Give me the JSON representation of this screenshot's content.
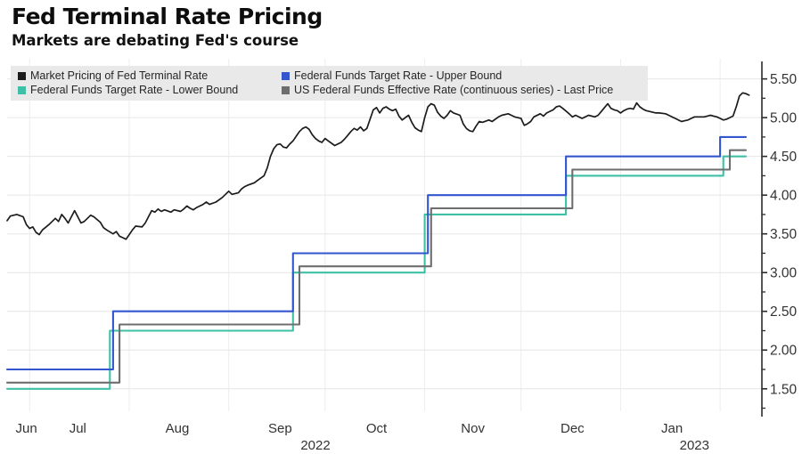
{
  "header": {
    "title": "Fed Terminal Rate Pricing",
    "subtitle": "Markets are debating Fed's course"
  },
  "legend": {
    "items": [
      {
        "label": "Market Pricing of Fed Terminal Rate",
        "color": "#1c1c1c"
      },
      {
        "label": "Federal Funds Target Rate - Upper Bound",
        "color": "#3356cf"
      },
      {
        "label": "Federal Funds Target Rate - Lower Bound",
        "color": "#3ec0a6"
      },
      {
        "label": "US Federal Funds Effective Rate (continuous series) - Last Price",
        "color": "#6e6e6e"
      }
    ]
  },
  "colors": {
    "background": "#ffffff",
    "grid_horizontal": "#e6e6e6",
    "grid_vertical": "#ededed",
    "axis": "#2b2b2b",
    "tick_label": "#333333",
    "legend_background": "#e9e9e9"
  },
  "chart_data": {
    "type": "line",
    "title": "Fed Terminal Rate Pricing",
    "subtitle": "Markets are debating Fed's course",
    "x_unit": "days since chart start (late June 2022, ~Jun 24 2022); chart ends early Feb 2023",
    "xlim": [
      0,
      235
    ],
    "ylim": [
      1.21,
      5.76
    ],
    "grid": true,
    "legend_position": "top-left",
    "y_axis_side": "right",
    "y_ticks_major": [
      1.5,
      2.0,
      2.5,
      3.0,
      3.5,
      4.0,
      4.5,
      5.0,
      5.5
    ],
    "y_ticks_minor": [
      1.25,
      1.75,
      2.25,
      2.75,
      3.25,
      3.75,
      4.25,
      4.75,
      5.25
    ],
    "y_tick_decimals": 2,
    "x_month_gridline_days": [
      7,
      38,
      69,
      99,
      130,
      160,
      191,
      222
    ],
    "x_month_labels": [
      {
        "label": "Jun",
        "day": 6
      },
      {
        "label": "Jul",
        "day": 22
      },
      {
        "label": "Aug",
        "day": 53
      },
      {
        "label": "Sep",
        "day": 85
      },
      {
        "label": "Oct",
        "day": 115
      },
      {
        "label": "Nov",
        "day": 145
      },
      {
        "label": "Dec",
        "day": 176
      },
      {
        "label": "Jan",
        "day": 207
      }
    ],
    "x_year_labels": [
      {
        "label": "2022",
        "day": 96
      },
      {
        "label": "2023",
        "day": 214
      }
    ],
    "series": [
      {
        "name": "Federal Funds Target Rate - Lower Bound",
        "color": "#3ec0a6",
        "width": 2.1,
        "points": [
          [
            0,
            1.5
          ],
          [
            32,
            1.5
          ],
          [
            32,
            2.25
          ],
          [
            89,
            2.25
          ],
          [
            89,
            3.0
          ],
          [
            130,
            3.0
          ],
          [
            130,
            3.75
          ],
          [
            174,
            3.75
          ],
          [
            174,
            4.25
          ],
          [
            223,
            4.25
          ],
          [
            223,
            4.5
          ],
          [
            230,
            4.5
          ]
        ]
      },
      {
        "name": "US Federal Funds Effective Rate (continuous series) - Last Price",
        "color": "#6e6e6e",
        "width": 2.1,
        "points": [
          [
            0,
            1.58
          ],
          [
            35,
            1.58
          ],
          [
            35,
            2.33
          ],
          [
            91,
            2.33
          ],
          [
            91,
            3.08
          ],
          [
            132,
            3.08
          ],
          [
            132,
            3.83
          ],
          [
            176,
            3.83
          ],
          [
            176,
            4.33
          ],
          [
            225,
            4.33
          ],
          [
            225,
            4.58
          ],
          [
            230,
            4.58
          ]
        ]
      },
      {
        "name": "Federal Funds Target Rate - Upper Bound",
        "color": "#3356cf",
        "width": 2.1,
        "points": [
          [
            0,
            1.75
          ],
          [
            33,
            1.75
          ],
          [
            33,
            2.5
          ],
          [
            89,
            2.5
          ],
          [
            89,
            3.25
          ],
          [
            131,
            3.25
          ],
          [
            131,
            4.0
          ],
          [
            174,
            4.0
          ],
          [
            174,
            4.5
          ],
          [
            222,
            4.5
          ],
          [
            222,
            4.75
          ],
          [
            230,
            4.75
          ]
        ]
      },
      {
        "name": "Market Pricing of Fed Terminal Rate",
        "color": "#1c1c1c",
        "width": 1.7,
        "points": [
          [
            0,
            3.67
          ],
          [
            1,
            3.73
          ],
          [
            3,
            3.75
          ],
          [
            5,
            3.72
          ],
          [
            6,
            3.62
          ],
          [
            7,
            3.57
          ],
          [
            8,
            3.59
          ],
          [
            9,
            3.52
          ],
          [
            10,
            3.49
          ],
          [
            11,
            3.55
          ],
          [
            13,
            3.62
          ],
          [
            15,
            3.7
          ],
          [
            16,
            3.66
          ],
          [
            17,
            3.75
          ],
          [
            18,
            3.7
          ],
          [
            19,
            3.64
          ],
          [
            20,
            3.72
          ],
          [
            21,
            3.8
          ],
          [
            22,
            3.72
          ],
          [
            23,
            3.64
          ],
          [
            24,
            3.66
          ],
          [
            25,
            3.7
          ],
          [
            26,
            3.74
          ],
          [
            27,
            3.72
          ],
          [
            29,
            3.65
          ],
          [
            30,
            3.58
          ],
          [
            31,
            3.55
          ],
          [
            33,
            3.5
          ],
          [
            34,
            3.53
          ],
          [
            35,
            3.47
          ],
          [
            36,
            3.45
          ],
          [
            37,
            3.43
          ],
          [
            38,
            3.49
          ],
          [
            39,
            3.55
          ],
          [
            40,
            3.6
          ],
          [
            42,
            3.59
          ],
          [
            43,
            3.64
          ],
          [
            44,
            3.72
          ],
          [
            45,
            3.8
          ],
          [
            46,
            3.78
          ],
          [
            47,
            3.82
          ],
          [
            48,
            3.79
          ],
          [
            49,
            3.81
          ],
          [
            51,
            3.78
          ],
          [
            52,
            3.81
          ],
          [
            54,
            3.79
          ],
          [
            55,
            3.82
          ],
          [
            56,
            3.86
          ],
          [
            57,
            3.83
          ],
          [
            58,
            3.81
          ],
          [
            59,
            3.84
          ],
          [
            61,
            3.88
          ],
          [
            62,
            3.91
          ],
          [
            63,
            3.88
          ],
          [
            65,
            3.91
          ],
          [
            66,
            3.94
          ],
          [
            67,
            3.97
          ],
          [
            68,
            4.01
          ],
          [
            69,
            4.05
          ],
          [
            70,
            4.01
          ],
          [
            72,
            4.03
          ],
          [
            73,
            4.08
          ],
          [
            74,
            4.11
          ],
          [
            75,
            4.13
          ],
          [
            77,
            4.16
          ],
          [
            78,
            4.19
          ],
          [
            80,
            4.25
          ],
          [
            81,
            4.35
          ],
          [
            82,
            4.5
          ],
          [
            83,
            4.6
          ],
          [
            84,
            4.65
          ],
          [
            85,
            4.66
          ],
          [
            86,
            4.62
          ],
          [
            87,
            4.61
          ],
          [
            88,
            4.66
          ],
          [
            89,
            4.7
          ],
          [
            90,
            4.76
          ],
          [
            91,
            4.82
          ],
          [
            92,
            4.86
          ],
          [
            93,
            4.88
          ],
          [
            94,
            4.85
          ],
          [
            95,
            4.78
          ],
          [
            96,
            4.73
          ],
          [
            97,
            4.7
          ],
          [
            98,
            4.68
          ],
          [
            99,
            4.73
          ],
          [
            100,
            4.7
          ],
          [
            102,
            4.64
          ],
          [
            103,
            4.66
          ],
          [
            104,
            4.68
          ],
          [
            105,
            4.72
          ],
          [
            106,
            4.77
          ],
          [
            107,
            4.82
          ],
          [
            108,
            4.86
          ],
          [
            109,
            4.84
          ],
          [
            110,
            4.88
          ],
          [
            111,
            4.83
          ],
          [
            112,
            4.86
          ],
          [
            113,
            4.98
          ],
          [
            114,
            5.1
          ],
          [
            115,
            5.13
          ],
          [
            116,
            5.06
          ],
          [
            117,
            5.12
          ],
          [
            118,
            5.14
          ],
          [
            119,
            5.11
          ],
          [
            120,
            5.09
          ],
          [
            121,
            5.11
          ],
          [
            122,
            5.02
          ],
          [
            123,
            4.97
          ],
          [
            124,
            5.0
          ],
          [
            125,
            5.03
          ],
          [
            126,
            4.94
          ],
          [
            127,
            4.87
          ],
          [
            128,
            4.84
          ],
          [
            129,
            4.82
          ],
          [
            130,
            5.0
          ],
          [
            131,
            5.14
          ],
          [
            132,
            5.18
          ],
          [
            133,
            5.16
          ],
          [
            134,
            5.07
          ],
          [
            135,
            5.02
          ],
          [
            136,
            4.99
          ],
          [
            137,
            5.03
          ],
          [
            138,
            5.09
          ],
          [
            139,
            5.06
          ],
          [
            141,
            5.03
          ],
          [
            142,
            4.92
          ],
          [
            143,
            4.86
          ],
          [
            144,
            4.83
          ],
          [
            145,
            4.82
          ],
          [
            146,
            4.89
          ],
          [
            147,
            4.95
          ],
          [
            148,
            4.94
          ],
          [
            150,
            4.97
          ],
          [
            151,
            4.95
          ],
          [
            153,
            5.01
          ],
          [
            154,
            5.03
          ],
          [
            156,
            5.05
          ],
          [
            157,
            5.03
          ],
          [
            158,
            5.01
          ],
          [
            160,
            4.99
          ],
          [
            161,
            4.9
          ],
          [
            162,
            4.92
          ],
          [
            163,
            4.95
          ],
          [
            164,
            5.01
          ],
          [
            166,
            5.05
          ],
          [
            167,
            5.02
          ],
          [
            168,
            5.06
          ],
          [
            170,
            5.1
          ],
          [
            171,
            5.14
          ],
          [
            172,
            5.15
          ],
          [
            173,
            5.12
          ],
          [
            175,
            5.05
          ],
          [
            176,
            5.01
          ],
          [
            177,
            5.03
          ],
          [
            178,
            5.01
          ],
          [
            179,
            4.99
          ],
          [
            180,
            5.01
          ],
          [
            181,
            5.03
          ],
          [
            183,
            5.01
          ],
          [
            184,
            5.03
          ],
          [
            185,
            5.08
          ],
          [
            186,
            5.13
          ],
          [
            187,
            5.18
          ],
          [
            188,
            5.12
          ],
          [
            189,
            5.1
          ],
          [
            190,
            5.09
          ],
          [
            191,
            5.06
          ],
          [
            192,
            5.09
          ],
          [
            193,
            5.11
          ],
          [
            194,
            5.12
          ],
          [
            195,
            5.11
          ],
          [
            196,
            5.19
          ],
          [
            197,
            5.14
          ],
          [
            198,
            5.11
          ],
          [
            199,
            5.09
          ],
          [
            200,
            5.08
          ],
          [
            202,
            5.06
          ],
          [
            203,
            5.06
          ],
          [
            205,
            5.05
          ],
          [
            206,
            5.03
          ],
          [
            207,
            5.01
          ],
          [
            208,
            4.99
          ],
          [
            209,
            4.97
          ],
          [
            210,
            4.95
          ],
          [
            211,
            4.96
          ],
          [
            212,
            4.97
          ],
          [
            213,
            4.99
          ],
          [
            214,
            5.01
          ],
          [
            216,
            5.01
          ],
          [
            217,
            5.01
          ],
          [
            218,
            5.02
          ],
          [
            219,
            5.03
          ],
          [
            220,
            5.02
          ],
          [
            221,
            5.01
          ],
          [
            222,
            4.99
          ],
          [
            223,
            4.97
          ],
          [
            224,
            4.98
          ],
          [
            225,
            5.0
          ],
          [
            226,
            5.02
          ],
          [
            227,
            5.14
          ],
          [
            228,
            5.28
          ],
          [
            229,
            5.32
          ],
          [
            230,
            5.31
          ],
          [
            231,
            5.29
          ]
        ]
      }
    ]
  }
}
